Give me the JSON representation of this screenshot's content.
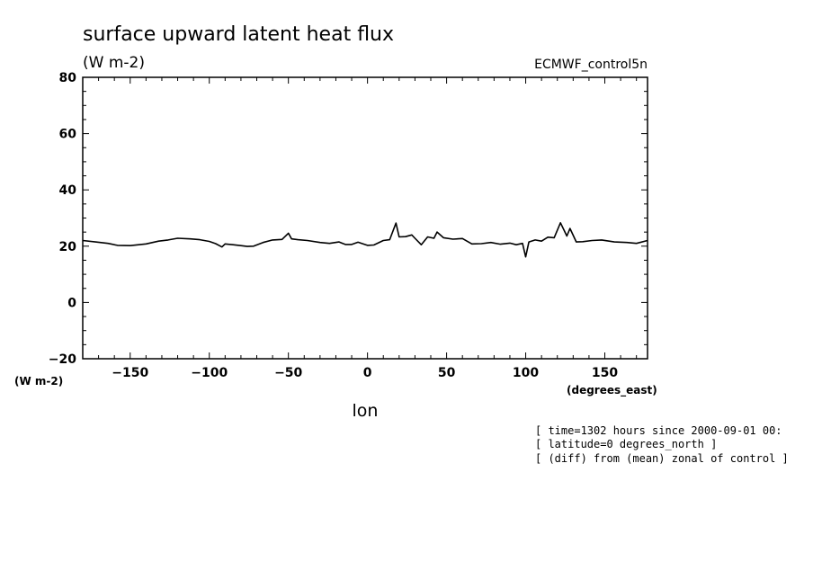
{
  "chart_data": {
    "type": "line",
    "title": "surface upward latent heat flux",
    "units": "(W m-2)",
    "dataset": "ECMWF_control5n",
    "xlabel": "lon",
    "xunits": "(degrees_east)",
    "yunits": "(W m-2)",
    "xlim": [
      -180,
      177
    ],
    "ylim": [
      -20,
      80
    ],
    "xticks": [
      -150,
      -100,
      -50,
      0,
      50,
      100,
      150
    ],
    "yticks": [
      -20,
      0,
      20,
      40,
      60,
      80
    ],
    "xtick_labels": [
      "−150",
      "−100",
      "−50",
      "0",
      "50",
      "100",
      "150"
    ],
    "ytick_labels": [
      "−20",
      "0",
      "20",
      "40",
      "60",
      "80"
    ],
    "grid": false,
    "series": [
      {
        "color": "#000000",
        "x": [
          -180,
          -172,
          -164,
          -158,
          -150,
          -140,
          -132,
          -126,
          -120,
          -112,
          -106,
          -100,
          -96,
          -92,
          -90,
          -85,
          -80,
          -76,
          -72,
          -66,
          -60,
          -54,
          -50,
          -48,
          -44,
          -38,
          -30,
          -24,
          -18,
          -14,
          -10,
          -6,
          0,
          4,
          10,
          14,
          18,
          20,
          24,
          28,
          30,
          34,
          38,
          42,
          44,
          48,
          54,
          60,
          66,
          72,
          78,
          84,
          90,
          94,
          98,
          100,
          102,
          106,
          110,
          114,
          118,
          122,
          126,
          128,
          132,
          136,
          142,
          148,
          156,
          164,
          170,
          177
        ],
        "y": [
          22,
          21.5,
          21,
          20.3,
          20.2,
          20.8,
          21.8,
          22.2,
          22.8,
          22.6,
          22.3,
          21.7,
          20.9,
          19.7,
          20.8,
          20.5,
          20.2,
          19.9,
          20,
          21.3,
          22.2,
          22.4,
          24.6,
          22.6,
          22.3,
          22,
          21.3,
          21,
          21.5,
          20.6,
          20.6,
          21.4,
          20.3,
          20.4,
          22,
          22.3,
          28.2,
          23.3,
          23.4,
          24,
          22.8,
          20.5,
          23.3,
          22.8,
          25,
          23,
          22.5,
          22.7,
          20.8,
          20.9,
          21.3,
          20.7,
          21.1,
          20.5,
          21,
          16.2,
          21.5,
          22.2,
          21.8,
          23.2,
          23,
          28.3,
          23.6,
          26.3,
          21.5,
          21.6,
          22,
          22.2,
          21.5,
          21.3,
          21,
          22
        ]
      }
    ]
  },
  "notes": [
    "[ time=1302 hours since 2000-09-01 00:",
    "[ latitude=0 degrees_north ]",
    "[ (diff) from (mean) zonal of control ]"
  ]
}
